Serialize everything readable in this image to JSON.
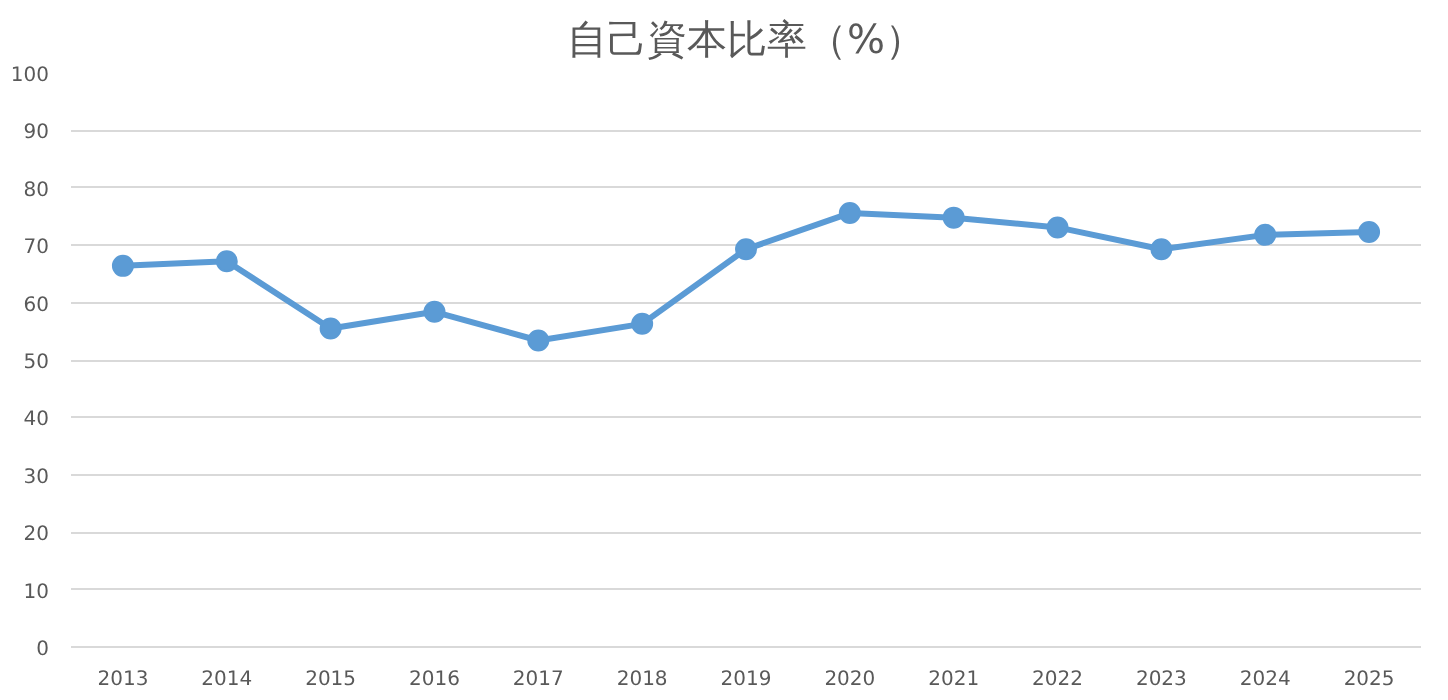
{
  "chart_data": {
    "type": "line",
    "title": "自己資本比率（%）",
    "categories": [
      "2013",
      "2014",
      "2015",
      "2016",
      "2017",
      "2018",
      "2019",
      "2020",
      "2021",
      "2022",
      "2023",
      "2024",
      "2025"
    ],
    "series": [
      {
        "color": "#5b9bd5",
        "values": [
          66.4,
          67.2,
          55.5,
          58.4,
          53.4,
          56.3,
          69.3,
          75.6,
          74.8,
          73.1,
          69.3,
          71.8,
          72.3
        ]
      }
    ],
    "ylim": [
      0,
      100
    ],
    "yticks": [
      0,
      10,
      20,
      30,
      40,
      50,
      60,
      70,
      80,
      90,
      100
    ],
    "grid": "y",
    "marker": "circle",
    "line_style": "solid"
  }
}
